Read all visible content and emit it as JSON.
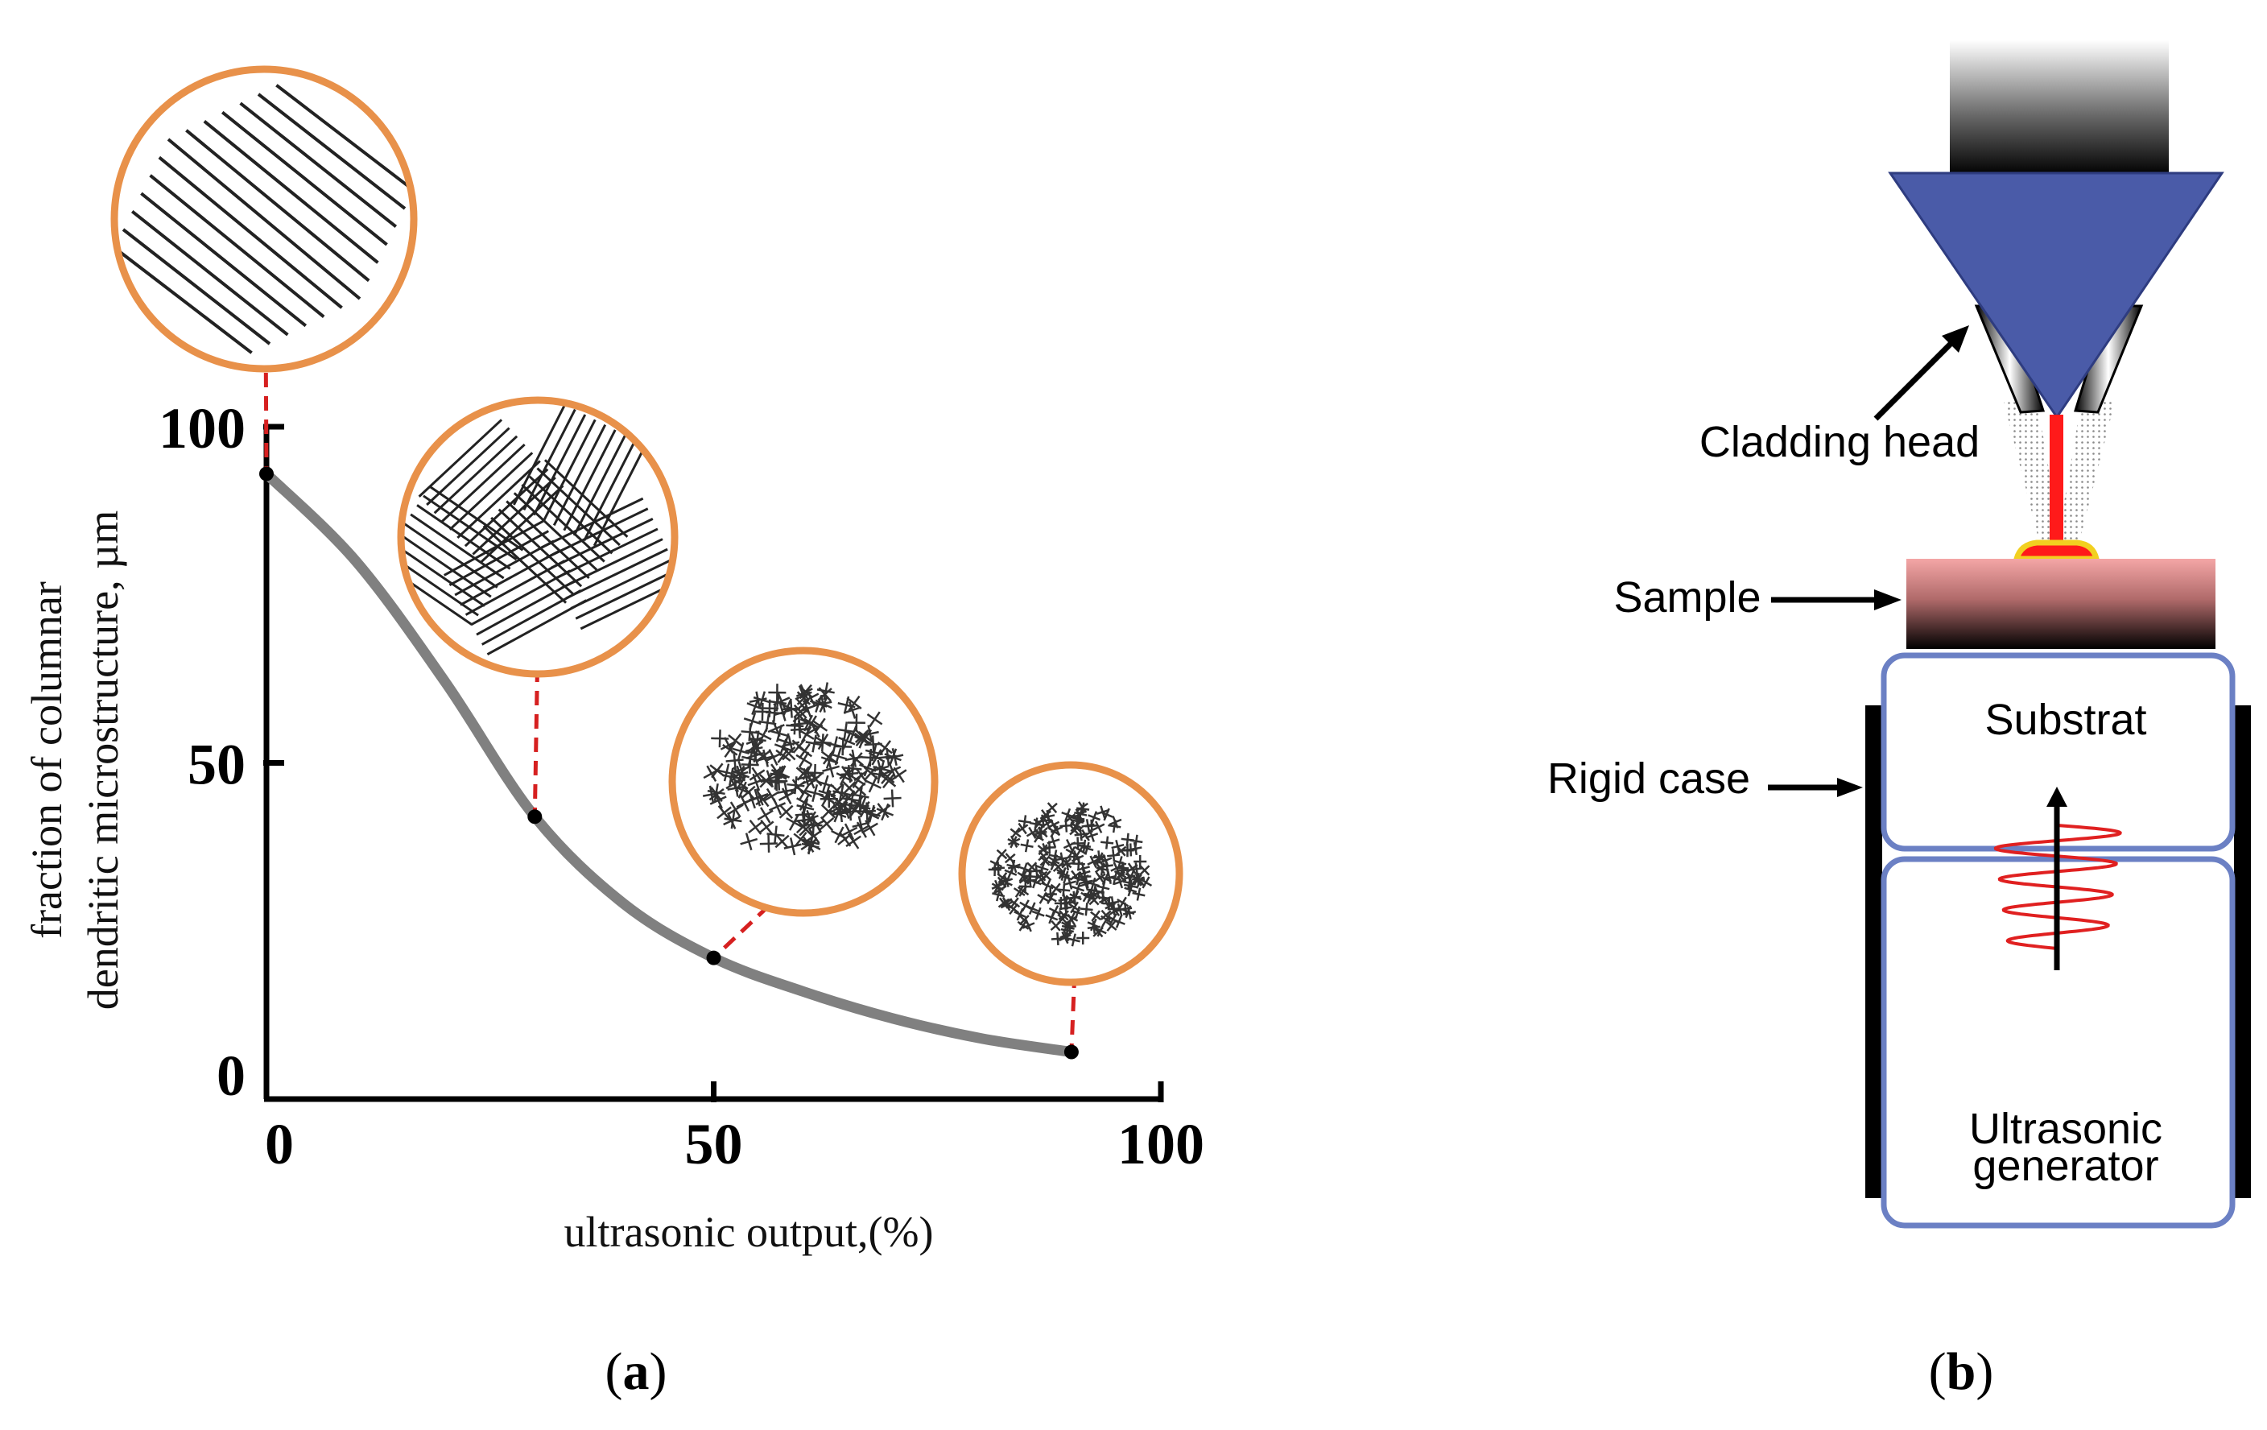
{
  "panel_a": {
    "label_open": "(",
    "label_letter": "a",
    "label_close": ")",
    "chart_data": {
      "type": "line",
      "xlabel": "ultrasonic output,(%)",
      "ylabel_lines": [
        "fraction of columnar",
        "dendritic microstructure, µm"
      ],
      "x_ticks": [
        0,
        50,
        100
      ],
      "y_ticks": [
        0,
        50,
        100
      ],
      "xlim": [
        0,
        100
      ],
      "ylim": [
        0,
        100
      ],
      "series": [
        {
          "x": [
            0,
            10,
            20,
            30,
            40,
            50,
            60,
            70,
            80,
            90
          ],
          "y": [
            93,
            80,
            62,
            42,
            29,
            21,
            16,
            12,
            9,
            7
          ]
        }
      ],
      "marked_points": [
        {
          "x": 0,
          "y": 93,
          "micro": "columnar"
        },
        {
          "x": 30,
          "y": 42,
          "micro": "mixed"
        },
        {
          "x": 50,
          "y": 21,
          "micro": "equiaxed"
        },
        {
          "x": 90,
          "y": 7,
          "micro": "fine-equiaxed"
        }
      ],
      "colors": {
        "curve": "#808080",
        "inset_ring": "#e8914a",
        "leader": "#d62020",
        "axis": "#000000"
      }
    }
  },
  "panel_b": {
    "label_open": "(",
    "label_letter": "b",
    "label_close": ")",
    "labels": {
      "cladding_head": "Cladding head",
      "sample": "Sample",
      "substrat": "Substrat",
      "rigid_case": "Rigid case",
      "ultrasonic_line1": "Ultrasonic",
      "ultrasonic_line2": "generator"
    },
    "colors": {
      "head": "#4a5ba8",
      "laser": "#ff1a1a",
      "box_border": "#6b80c4",
      "melt_pool": "#f2d020"
    }
  }
}
